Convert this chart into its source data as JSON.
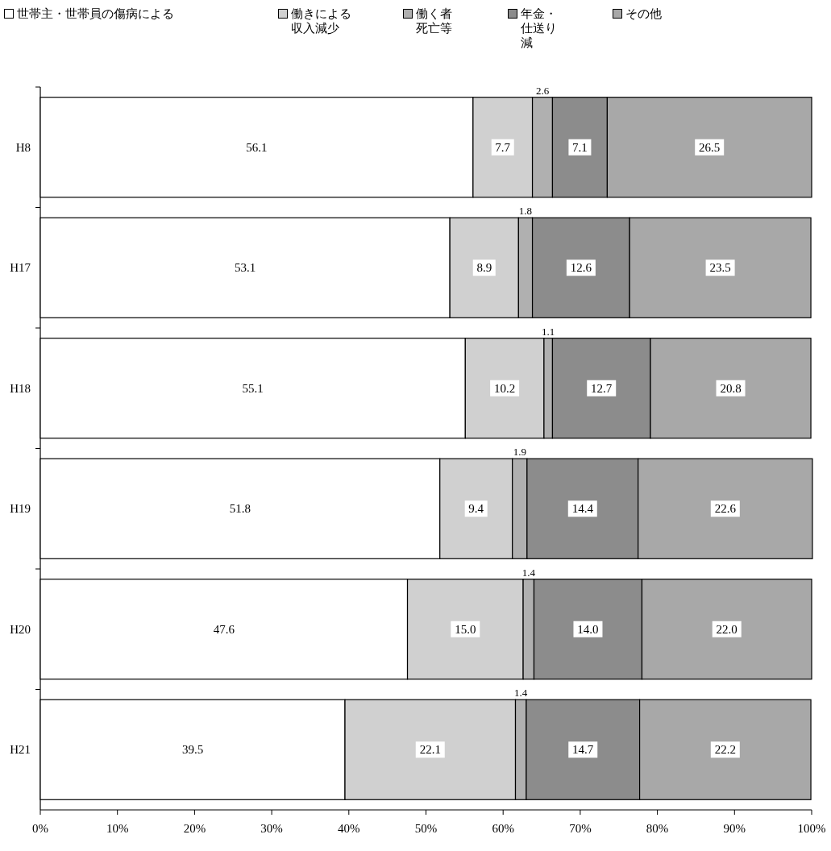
{
  "chart_data": {
    "type": "bar",
    "orientation": "horizontal",
    "stacked": true,
    "legend": "top",
    "grid": false,
    "categories": [
      "H8",
      "H17",
      "H18",
      "H19",
      "H20",
      "H21"
    ],
    "xlim": [
      0,
      100
    ],
    "xticks": [
      {
        "value": 0,
        "label": "0%"
      },
      {
        "value": 10,
        "label": "10%"
      },
      {
        "value": 20,
        "label": "20%"
      },
      {
        "value": 30,
        "label": "30%"
      },
      {
        "value": 40,
        "label": "40%"
      },
      {
        "value": 50,
        "label": "50%"
      },
      {
        "value": 60,
        "label": "60%"
      },
      {
        "value": 70,
        "label": "70%"
      },
      {
        "value": 80,
        "label": "80%"
      },
      {
        "value": 90,
        "label": "90%"
      },
      {
        "value": 100,
        "label": "100%"
      }
    ],
    "series": [
      {
        "name": "世帯主・世帯員の傷病による",
        "color": "#ffffff",
        "values": [
          56.1,
          53.1,
          55.1,
          51.8,
          47.6,
          39.5
        ],
        "value_labels": [
          "56.1",
          "53.1",
          "55.1",
          "51.8",
          "47.6",
          "39.5"
        ]
      },
      {
        "name": "働きによる収入減少",
        "color": "#d0d0d0",
        "values": [
          7.7,
          8.9,
          10.2,
          9.4,
          15.0,
          22.1
        ],
        "value_labels": [
          "7.7",
          "8.9",
          "10.2",
          "9.4",
          "15.0",
          "22.1"
        ]
      },
      {
        "name": "働く者死亡等",
        "color": "#b0b0b0",
        "values": [
          2.6,
          1.8,
          1.1,
          1.9,
          1.4,
          1.4
        ],
        "value_labels": [
          "2.6",
          "1.8",
          "1.1",
          "1.9",
          "1.4",
          "1.4"
        ]
      },
      {
        "name": "年金・仕送り減",
        "color": "#8c8c8c",
        "values": [
          7.1,
          12.6,
          12.7,
          14.4,
          14.0,
          14.7
        ],
        "value_labels": [
          "7.1",
          "12.6",
          "12.7",
          "14.4",
          "14.0",
          "14.7"
        ]
      },
      {
        "name": "その他",
        "color": "#a8a8a8",
        "values": [
          26.5,
          23.5,
          20.8,
          22.6,
          22.0,
          22.2
        ],
        "value_labels": [
          "26.5",
          "23.5",
          "20.8",
          "22.6",
          "22.0",
          "22.2"
        ]
      }
    ]
  }
}
